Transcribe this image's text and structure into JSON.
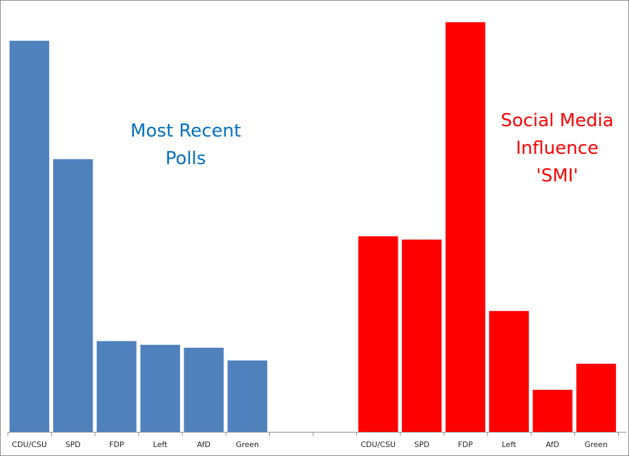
{
  "chart_data": {
    "type": "bar",
    "title": "",
    "xlabel": "",
    "ylabel": "",
    "ylim": [
      0,
      100
    ],
    "grid": false,
    "legend": "none",
    "categories": [
      "CDU/CSU",
      "SPD",
      "FDP",
      "Left",
      "AfD",
      "Green",
      "",
      "",
      "CDU/CSU",
      "SPD",
      "FDP",
      "Left",
      "AfD",
      "Green"
    ],
    "series": [
      {
        "name": "Most Recent Polls",
        "color": "#4f81bd",
        "values": [
          94.8,
          66.1,
          22.0,
          21.1,
          20.4,
          17.3,
          null,
          null,
          null,
          null,
          null,
          null,
          null,
          null
        ]
      },
      {
        "name": "Social Media Influence 'SMI'",
        "color": "#ff0000",
        "values": [
          null,
          null,
          null,
          null,
          null,
          null,
          null,
          null,
          47.4,
          46.6,
          99.3,
          29.3,
          10.2,
          16.5
        ]
      }
    ],
    "annotations": [
      {
        "text_lines": [
          "Most Recent",
          "Polls"
        ],
        "color": "#0070c0"
      },
      {
        "text_lines": [
          "Social Media",
          "Influence",
          "'SMI'"
        ],
        "color": "#ff0000"
      }
    ]
  }
}
